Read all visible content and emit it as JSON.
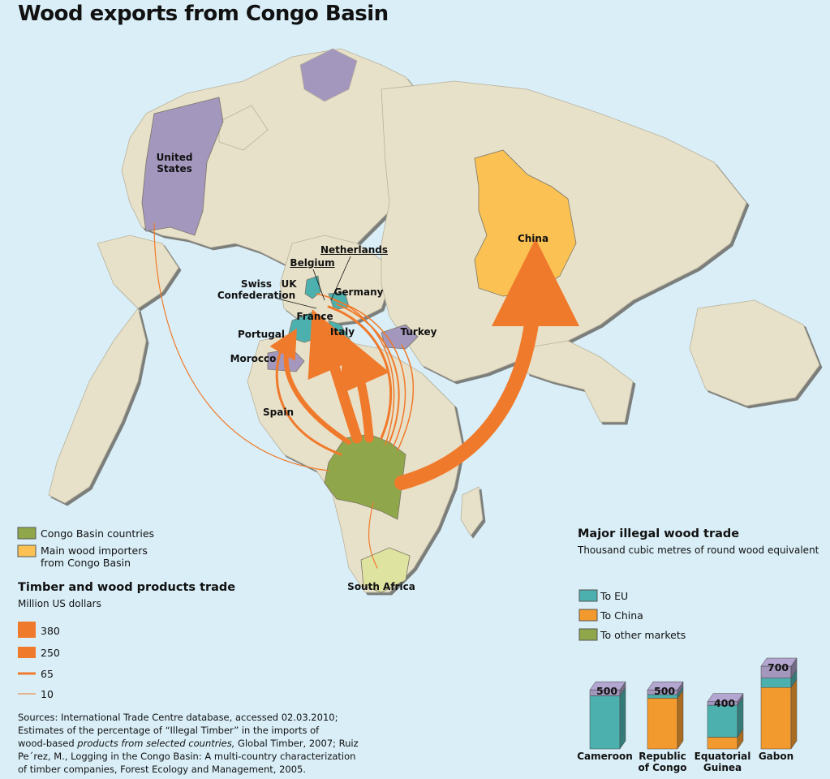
{
  "title": "Wood exports from Congo Basin",
  "colors": {
    "ocean": "#d9eef7",
    "land": "#e8e1c9",
    "congo": "#8fa64a",
    "importer": "#fbc253",
    "eu": "#4cb0ae",
    "other_importer": "#a397bd",
    "flow": "#f07a2b",
    "to_china": "#f39a2e",
    "to_other": "#8fa64a",
    "to_eu": "#4cb0ae"
  },
  "map_labels": {
    "united_states": "United\nStates",
    "china": "China",
    "netherlands": "Netherlands",
    "belgium": "Belgium",
    "uk": "UK",
    "germany": "Germany",
    "swiss": "Swiss\nConfederation",
    "france": "France",
    "portugal": "Portugal",
    "italy": "Italy",
    "turkey": "Turkey",
    "morocco": "Morocco",
    "spain": "Spain",
    "south_africa": "South Africa"
  },
  "legend": {
    "congo_basin": "Congo Basin countries",
    "main_importers": "Main wood importers\nfrom Congo Basin"
  },
  "trade_legend": {
    "title": "Timber and wood products trade",
    "unit": "Million US dollars",
    "items": [
      {
        "label": "380",
        "value": 380
      },
      {
        "label": "250",
        "value": 250
      },
      {
        "label": "65",
        "value": 65
      },
      {
        "label": "10",
        "value": 10
      }
    ]
  },
  "flows": [
    {
      "from": "Congo Basin",
      "to": "China"
    },
    {
      "from": "Congo Basin",
      "to": "France"
    },
    {
      "from": "Congo Basin",
      "to": "Italy"
    },
    {
      "from": "Congo Basin",
      "to": "Portugal"
    },
    {
      "from": "Congo Basin",
      "to": "Spain"
    },
    {
      "from": "Congo Basin",
      "to": "Belgium"
    },
    {
      "from": "Congo Basin",
      "to": "Germany"
    },
    {
      "from": "Congo Basin",
      "to": "Netherlands"
    },
    {
      "from": "Congo Basin",
      "to": "UK"
    },
    {
      "from": "Congo Basin",
      "to": "Swiss Confederation"
    },
    {
      "from": "Congo Basin",
      "to": "Turkey"
    },
    {
      "from": "Congo Basin",
      "to": "United States"
    },
    {
      "from": "Congo Basin",
      "to": "South Africa"
    }
  ],
  "sources": {
    "line1": "Sources: International Trade Centre database, accessed 02.03.2010;",
    "line2": "Estimates of the percentage of  “Illegal Timber” in the imports of",
    "line3a": "wood-based ",
    "line3b": "products from selected countries,",
    "line3c": " Global Timber, 2007; Ruiz",
    "line4": "Pe´rez, M., Logging in the Congo Basin: A multi-country characterization",
    "line5": "of timber companies, Forest Ecology and Management, 2005."
  },
  "chart_data": {
    "type": "bar",
    "title": "Major illegal wood trade",
    "subtitle": "Thousand cubic metres of round wood equivalent",
    "legend": [
      "To EU",
      "To China",
      "To other markets"
    ],
    "categories": [
      "Cameroon",
      "Republic\nof Congo",
      "Equatorial\nGuinea",
      "Gabon"
    ],
    "totals": [
      500,
      500,
      400,
      700
    ],
    "series": [
      {
        "name": "To EU",
        "values": [
          450,
          30,
          270,
          80
        ]
      },
      {
        "name": "To China",
        "values": [
          0,
          430,
          100,
          520
        ]
      },
      {
        "name": "To other markets",
        "values": [
          50,
          40,
          30,
          100
        ]
      }
    ],
    "ylim": [
      0,
      700
    ]
  }
}
